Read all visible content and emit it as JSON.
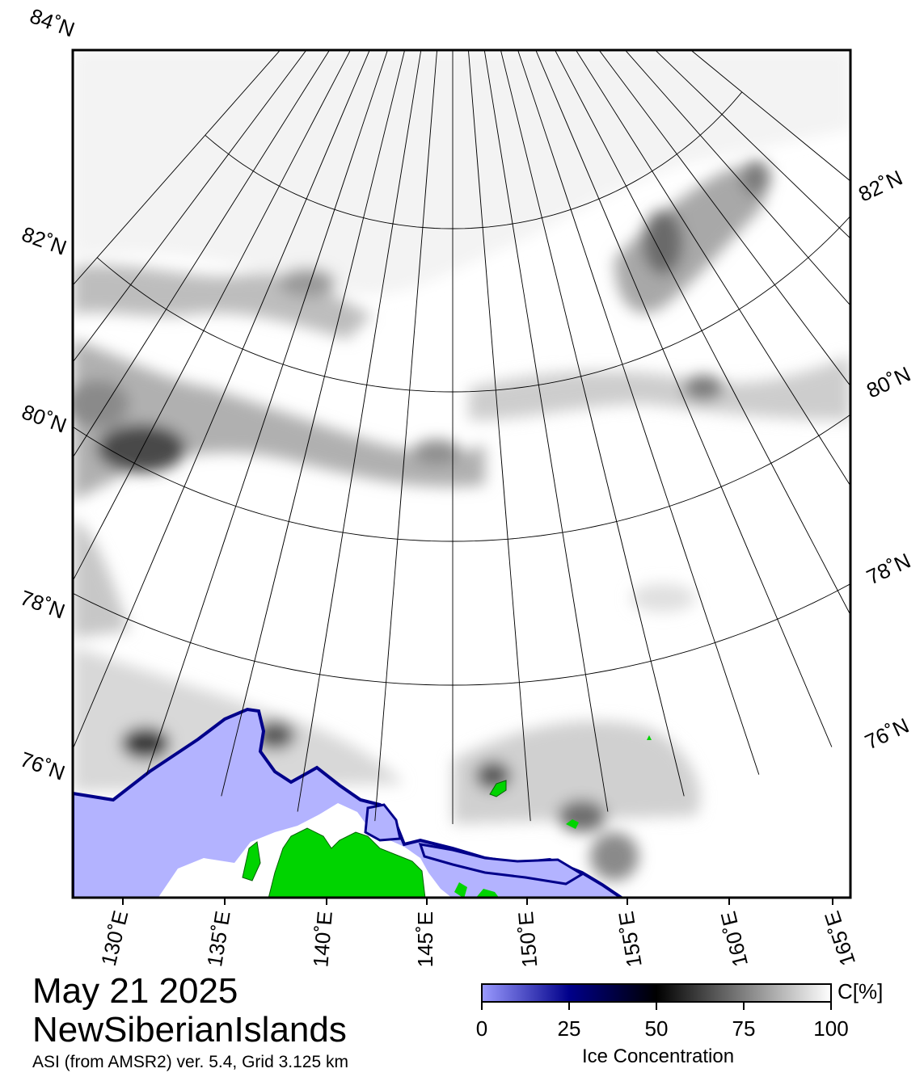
{
  "map": {
    "date": "May 21 2025",
    "region": "NewSiberianIslands",
    "product": "ASI (from AMSR2) ver. 5.4,  Grid 3.125 km",
    "longitude_labels": [
      "130˚E",
      "135˚E",
      "140˚E",
      "145˚E",
      "150˚E",
      "155˚E",
      "160˚E",
      "165˚E"
    ],
    "latitude_labels_left": [
      "84˚N",
      "82˚N",
      "80˚N",
      "78˚N",
      "76˚N"
    ],
    "latitude_labels_right": [
      "82˚N",
      "80˚N",
      "78˚N",
      "76˚N"
    ],
    "colors": {
      "land": "#00d400",
      "open_water": "#b3b3ff",
      "ice_full": "#ffffff",
      "frame": "#000000"
    }
  },
  "colorbar": {
    "title": "Ice Concentration",
    "unit": "C[%]",
    "ticks": [
      "0",
      "25",
      "50",
      "75",
      "100"
    ],
    "range": [
      0,
      100
    ],
    "stops": [
      {
        "value": 0,
        "color": "#9a9aff"
      },
      {
        "value": 25,
        "color": "#00008a"
      },
      {
        "value": 50,
        "color": "#000000"
      },
      {
        "value": 100,
        "color": "#ffffff"
      }
    ]
  }
}
